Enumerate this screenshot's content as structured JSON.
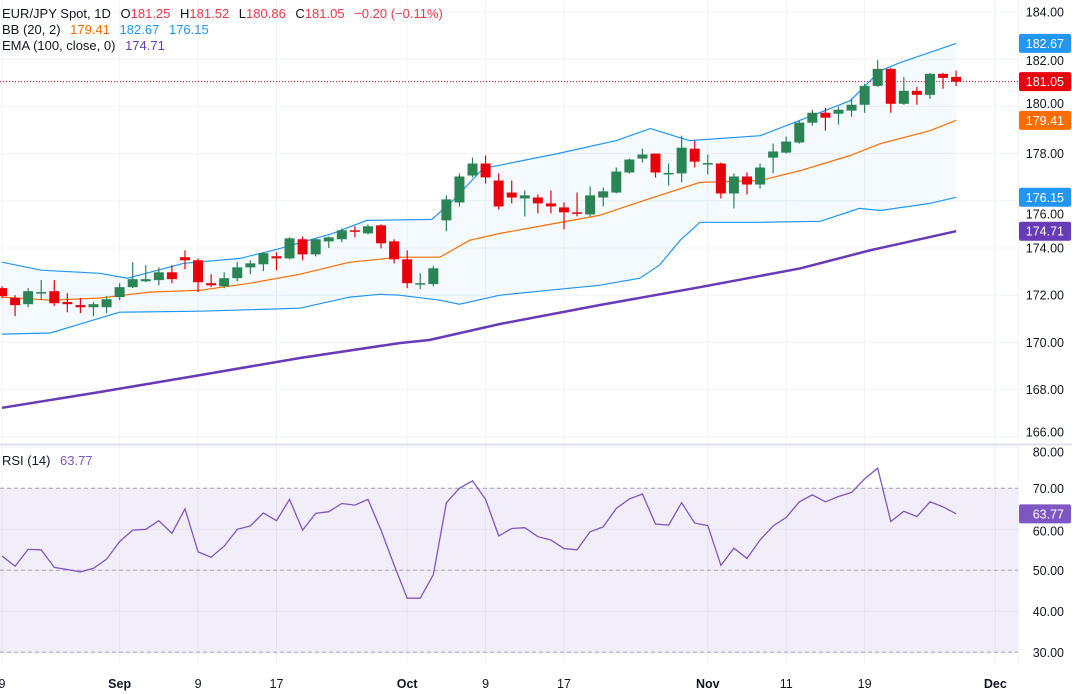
{
  "legend": {
    "symbol": "EUR/JPY Spot, 1D",
    "o_label": "O",
    "o": "181.25",
    "h_label": "H",
    "h": "181.52",
    "l_label": "L",
    "l": "180.86",
    "c_label": "C",
    "c": "181.05",
    "change": "−0.20 (−0.11%)"
  },
  "bb_legend": {
    "label": "BB (20, 2)",
    "basis": "179.41",
    "upper": "182.67",
    "lower": "176.15"
  },
  "ema_legend": {
    "label": "EMA (100, close, 0)",
    "value": "174.71"
  },
  "rsi_legend": {
    "label": "RSI (14)",
    "value": "63.77"
  },
  "colors": {
    "up": "#2b8453",
    "down": "#e8000b",
    "bb_band": "#2196f3",
    "bb_basis": "#ff6d00",
    "ema": "#673ab7",
    "rsi": "#7e57c2",
    "last_price": "#e8000b"
  },
  "badges": {
    "bb_upper": "182.67",
    "last": "181.05",
    "bb_basis": "179.41",
    "bb_lower": "176.15",
    "ema": "174.71",
    "rsi": "63.77"
  },
  "chart_data": {
    "type": "candlestick",
    "title": "EUR/JPY Spot, 1D",
    "price_axis": {
      "ylim": [
        166,
        184
      ],
      "ticks": [
        "184.00",
        "182.00",
        "180.00",
        "178.00",
        "176.00",
        "174.00",
        "172.00",
        "170.00",
        "168.00",
        "166.00"
      ]
    },
    "x_ticks": [
      {
        "label": "9",
        "bar": 0
      },
      {
        "label": "Sep",
        "bar": 9
      },
      {
        "label": "9",
        "bar": 15
      },
      {
        "label": "17",
        "bar": 21
      },
      {
        "label": "Oct",
        "bar": 31
      },
      {
        "label": "9",
        "bar": 37
      },
      {
        "label": "17",
        "bar": 43
      },
      {
        "label": "Nov",
        "bar": 54
      },
      {
        "label": "11",
        "bar": 60
      },
      {
        "label": "19",
        "bar": 66
      },
      {
        "label": "Dec",
        "bar": 76
      }
    ],
    "ohlc": [
      [
        172.3,
        172.38,
        171.87,
        171.96
      ],
      [
        171.88,
        172.0,
        171.11,
        171.58
      ],
      [
        171.62,
        172.3,
        171.49,
        172.17
      ],
      [
        172.09,
        172.64,
        171.79,
        172.13
      ],
      [
        172.17,
        172.64,
        171.54,
        171.66
      ],
      [
        171.71,
        172.09,
        171.28,
        171.62
      ],
      [
        171.58,
        171.88,
        171.24,
        171.49
      ],
      [
        171.49,
        171.71,
        171.11,
        171.62
      ],
      [
        171.49,
        171.96,
        171.24,
        171.83
      ],
      [
        171.92,
        172.51,
        171.79,
        172.34
      ],
      [
        172.34,
        173.4,
        172.3,
        172.68
      ],
      [
        172.59,
        173.27,
        172.55,
        172.68
      ],
      [
        172.64,
        173.18,
        172.42,
        172.97
      ],
      [
        172.97,
        173.27,
        172.51,
        172.68
      ],
      [
        173.61,
        173.9,
        173.1,
        173.48
      ],
      [
        173.48,
        173.56,
        172.13,
        172.55
      ],
      [
        172.51,
        172.89,
        172.34,
        172.42
      ],
      [
        172.38,
        172.97,
        172.3,
        172.72
      ],
      [
        172.72,
        173.4,
        172.59,
        173.18
      ],
      [
        173.18,
        173.48,
        172.89,
        173.35
      ],
      [
        173.31,
        173.82,
        173.02,
        173.78
      ],
      [
        173.65,
        173.82,
        173.06,
        173.56
      ],
      [
        173.56,
        174.45,
        173.52,
        174.41
      ],
      [
        174.37,
        174.49,
        173.48,
        173.73
      ],
      [
        173.73,
        174.41,
        173.65,
        174.37
      ],
      [
        174.28,
        174.49,
        174.0,
        174.45
      ],
      [
        174.37,
        174.83,
        174.24,
        174.75
      ],
      [
        174.75,
        174.92,
        174.45,
        174.71
      ],
      [
        174.62,
        175.0,
        174.58,
        174.92
      ],
      [
        174.96,
        175.0,
        173.99,
        174.2
      ],
      [
        174.28,
        174.37,
        173.35,
        173.52
      ],
      [
        173.52,
        173.9,
        172.3,
        172.51
      ],
      [
        172.47,
        172.93,
        172.26,
        172.51
      ],
      [
        172.47,
        173.23,
        172.38,
        173.14
      ],
      [
        175.17,
        176.23,
        174.71,
        176.06
      ],
      [
        175.93,
        177.16,
        175.76,
        177.03
      ],
      [
        177.07,
        177.83,
        176.99,
        177.58
      ],
      [
        177.58,
        177.92,
        176.73,
        176.99
      ],
      [
        176.86,
        177.16,
        175.63,
        175.76
      ],
      [
        176.35,
        176.86,
        175.89,
        176.14
      ],
      [
        176.1,
        176.44,
        175.34,
        176.23
      ],
      [
        176.14,
        176.27,
        175.47,
        175.89
      ],
      [
        175.89,
        176.44,
        175.47,
        175.76
      ],
      [
        175.72,
        175.93,
        174.79,
        175.51
      ],
      [
        175.51,
        176.35,
        175.34,
        175.47
      ],
      [
        175.42,
        176.61,
        175.34,
        176.23
      ],
      [
        176.14,
        176.56,
        175.76,
        176.4
      ],
      [
        176.35,
        177.41,
        176.31,
        177.24
      ],
      [
        177.2,
        177.79,
        177.16,
        177.75
      ],
      [
        177.79,
        178.21,
        177.62,
        177.96
      ],
      [
        178.0,
        178.0,
        176.99,
        177.2
      ],
      [
        177.16,
        177.58,
        176.65,
        177.18
      ],
      [
        177.16,
        178.76,
        176.78,
        178.25
      ],
      [
        178.21,
        178.55,
        177.41,
        177.66
      ],
      [
        177.58,
        177.96,
        177.11,
        177.6
      ],
      [
        177.58,
        177.62,
        176.1,
        176.31
      ],
      [
        176.31,
        177.16,
        175.68,
        177.03
      ],
      [
        177.03,
        177.2,
        176.27,
        176.69
      ],
      [
        176.69,
        177.58,
        176.52,
        177.41
      ],
      [
        177.83,
        178.42,
        177.16,
        178.09
      ],
      [
        178.04,
        178.72,
        178.0,
        178.51
      ],
      [
        178.47,
        179.4,
        178.42,
        179.31
      ],
      [
        179.31,
        179.86,
        179.18,
        179.73
      ],
      [
        179.73,
        179.94,
        178.97,
        179.52
      ],
      [
        179.69,
        179.99,
        179.23,
        179.86
      ],
      [
        179.82,
        180.32,
        179.56,
        180.07
      ],
      [
        180.07,
        180.96,
        179.73,
        180.87
      ],
      [
        180.87,
        181.97,
        180.83,
        181.59
      ],
      [
        181.59,
        181.63,
        179.73,
        180.11
      ],
      [
        180.11,
        181.25,
        180.07,
        180.66
      ],
      [
        180.66,
        180.83,
        180.07,
        180.49
      ],
      [
        180.49,
        181.42,
        180.32,
        181.38
      ],
      [
        181.38,
        181.42,
        180.75,
        181.21
      ],
      [
        181.25,
        181.52,
        180.86,
        181.05
      ]
    ],
    "last_price": 181.05,
    "bb_upper": [
      [
        0,
        173.4
      ],
      [
        3,
        173.06
      ],
      [
        7.5,
        172.93
      ],
      [
        9.6,
        172.72
      ],
      [
        13.9,
        173.35
      ],
      [
        18.2,
        173.56
      ],
      [
        21,
        173.94
      ],
      [
        25.3,
        174.62
      ],
      [
        27.9,
        175.17
      ],
      [
        32.9,
        175.21
      ],
      [
        34.5,
        176.01
      ],
      [
        36.8,
        177.37
      ],
      [
        42.5,
        178.0
      ],
      [
        47,
        178.55
      ],
      [
        49.6,
        179.06
      ],
      [
        52.6,
        178.55
      ],
      [
        58,
        178.76
      ],
      [
        61,
        179.4
      ],
      [
        64.9,
        180.24
      ],
      [
        67.2,
        181.51
      ],
      [
        68.7,
        181.85
      ],
      [
        73,
        182.67
      ]
    ],
    "bb_basis": [
      [
        0,
        171.92
      ],
      [
        3.7,
        171.79
      ],
      [
        7.5,
        171.88
      ],
      [
        11.3,
        172.13
      ],
      [
        15.2,
        172.21
      ],
      [
        19,
        172.51
      ],
      [
        22.8,
        172.89
      ],
      [
        26.6,
        173.4
      ],
      [
        30.4,
        173.61
      ],
      [
        33.5,
        173.61
      ],
      [
        35.8,
        174.33
      ],
      [
        38.1,
        174.62
      ],
      [
        41.9,
        175.0
      ],
      [
        45.7,
        175.38
      ],
      [
        49.6,
        176.1
      ],
      [
        53.4,
        176.78
      ],
      [
        58,
        176.86
      ],
      [
        61.1,
        177.28
      ],
      [
        64.9,
        177.92
      ],
      [
        67.2,
        178.42
      ],
      [
        71,
        178.97
      ],
      [
        73,
        179.41
      ]
    ],
    "bb_lower": [
      [
        0,
        170.35
      ],
      [
        3.7,
        170.4
      ],
      [
        7.5,
        171.03
      ],
      [
        9,
        171.28
      ],
      [
        15.2,
        171.32
      ],
      [
        22.8,
        171.45
      ],
      [
        26.6,
        171.92
      ],
      [
        28.9,
        172.04
      ],
      [
        30.4,
        172.0
      ],
      [
        33.5,
        171.79
      ],
      [
        35.0,
        171.62
      ],
      [
        38.1,
        172.0
      ],
      [
        41.9,
        172.21
      ],
      [
        45.7,
        172.42
      ],
      [
        48.8,
        172.72
      ],
      [
        50.3,
        173.27
      ],
      [
        51.9,
        174.33
      ],
      [
        53.4,
        175.09
      ],
      [
        58,
        175.09
      ],
      [
        62.6,
        175.13
      ],
      [
        65.6,
        175.68
      ],
      [
        67.2,
        175.59
      ],
      [
        71,
        175.89
      ],
      [
        73,
        176.15
      ]
    ],
    "ema_100": [
      [
        0,
        167.23
      ],
      [
        7.5,
        167.9
      ],
      [
        15.2,
        168.62
      ],
      [
        22.8,
        169.34
      ],
      [
        30.4,
        169.97
      ],
      [
        32.7,
        170.1
      ],
      [
        38.1,
        170.78
      ],
      [
        45.7,
        171.58
      ],
      [
        53.4,
        172.34
      ],
      [
        61.1,
        173.14
      ],
      [
        66.4,
        173.9
      ],
      [
        73,
        174.71
      ]
    ],
    "rsi": {
      "title": "RSI (14)",
      "ylim": [
        30,
        80
      ],
      "ticks": [
        "80.00",
        "70.00",
        "60.00",
        "50.00",
        "40.00",
        "30.00"
      ],
      "bands": [
        30,
        50,
        70
      ],
      "values": [
        53.5,
        51.0,
        55.1,
        55.0,
        50.7,
        50.2,
        49.6,
        50.5,
        52.7,
        57.0,
        59.8,
        60.0,
        62.1,
        59.0,
        65.0,
        54.5,
        53.2,
        55.9,
        60.0,
        60.8,
        64.0,
        62.1,
        67.3,
        59.8,
        63.9,
        64.3,
        66.3,
        65.9,
        67.3,
        59.8,
        51.3,
        43.2,
        43.2,
        48.9,
        66.5,
        70.0,
        71.8,
        67.3,
        58.4,
        60.2,
        60.4,
        58.2,
        57.4,
        55.3,
        55.0,
        59.4,
        60.6,
        65.1,
        67.4,
        68.6,
        61.3,
        61.0,
        66.5,
        61.5,
        60.9,
        51.2,
        55.4,
        52.9,
        57.4,
        60.8,
        62.9,
        66.7,
        68.4,
        66.7,
        68.0,
        69.0,
        72.3,
        74.9,
        61.9,
        64.4,
        63.1,
        66.7,
        65.5,
        63.77
      ]
    }
  }
}
